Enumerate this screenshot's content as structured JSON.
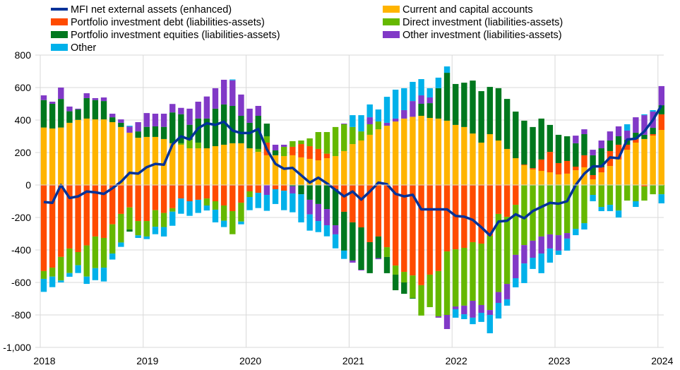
{
  "chart_data": {
    "type": "bar",
    "stacked": true,
    "title": "",
    "xlabel": "",
    "ylabel": "",
    "ylim": [
      -1000,
      800
    ],
    "ytick_step": 200,
    "y_tick_labels": [
      "-1,000",
      "-800",
      "-600",
      "-400",
      "-200",
      "0",
      "200",
      "400",
      "600",
      "800"
    ],
    "x_tick_labels": [
      "2018",
      "2019",
      "2020",
      "2021",
      "2022",
      "2023",
      "2024"
    ],
    "grid": true,
    "legend_placement": "top",
    "x_start": "2018-01",
    "x_end": "2024-01",
    "frequency": "monthly",
    "series": [
      {
        "name": "Current and capital accounts",
        "color": "#FFB400",
        "values": [
          354,
          348,
          354,
          383,
          401,
          409,
          404,
          404,
          387,
          357,
          322,
          291,
          296,
          296,
          283,
          257,
          248,
          226,
          226,
          226,
          239,
          248,
          257,
          257,
          226,
          204,
          183,
          183,
          178,
          183,
          170,
          161,
          152,
          165,
          178,
          209,
          252,
          274,
          309,
          343,
          365,
          391,
          409,
          420,
          426,
          413,
          409,
          396,
          370,
          357,
          317,
          261,
          313,
          274,
          222,
          165,
          122,
          96,
          87,
          78,
          65,
          70,
          91,
          109,
          35,
          78,
          117,
          157,
          217,
          261,
          283,
          304,
          339
        ]
      },
      {
        "name": "Portfolio investment debt (liabilities-assets)",
        "color": "#FF4B00",
        "values": [
          -530,
          -509,
          -443,
          -391,
          -413,
          -372,
          -317,
          -326,
          -242,
          -178,
          -138,
          -222,
          -222,
          -155,
          -172,
          -143,
          -83,
          -100,
          -91,
          -83,
          -100,
          -126,
          -161,
          -109,
          -39,
          -48,
          78,
          -26,
          -35,
          52,
          82,
          78,
          70,
          28,
          -26,
          -165,
          -230,
          -261,
          -352,
          -317,
          -383,
          -496,
          -535,
          -557,
          -617,
          -552,
          -530,
          -409,
          -396,
          -387,
          -352,
          -361,
          -313,
          -178,
          -196,
          -122,
          4,
          8,
          70,
          126,
          70,
          78,
          22,
          74,
          26,
          31,
          92,
          91,
          31,
          22,
          -9,
          9,
          96
        ]
      },
      {
        "name": "Direct investment (liabilities-assets)",
        "color": "#65B800",
        "values": [
          -48,
          -55,
          -145,
          -151,
          -81,
          -192,
          -195,
          -183,
          -180,
          -176,
          -136,
          -88,
          -95,
          -102,
          -87,
          -21,
          9,
          51,
          35,
          -43,
          -52,
          -94,
          -142,
          -116,
          -35,
          18,
          39,
          0,
          57,
          35,
          22,
          48,
          104,
          133,
          179,
          165,
          105,
          56,
          65,
          48,
          -60,
          -56,
          -65,
          -139,
          -187,
          -200,
          -279,
          -391,
          -352,
          -356,
          -361,
          -378,
          -457,
          -481,
          -413,
          -308,
          -370,
          -343,
          -317,
          -304,
          -309,
          -296,
          -270,
          -235,
          -61,
          -135,
          -122,
          -157,
          -96,
          -100,
          -87,
          -57,
          -57
        ]
      },
      {
        "name": "Portfolio investment equities (liabilities-assets)",
        "color": "#00781E",
        "values": [
          169,
          152,
          176,
          71,
          64,
          126,
          119,
          113,
          30,
          26,
          -13,
          39,
          62,
          65,
          75,
          190,
          179,
          94,
          148,
          183,
          231,
          248,
          230,
          169,
          157,
          204,
          78,
          30,
          0,
          -7,
          -57,
          -91,
          -117,
          -148,
          -222,
          -239,
          -235,
          -261,
          -191,
          -134,
          -100,
          -96,
          -70,
          -4,
          74,
          91,
          187,
          295,
          252,
          273,
          326,
          317,
          291,
          322,
          308,
          287,
          270,
          253,
          252,
          166,
          174,
          152,
          144,
          130,
          122,
          117,
          65,
          52,
          30,
          39,
          26,
          39,
          56
        ]
      },
      {
        "name": "Other investment (liabilities-assets)",
        "color": "#8139C7",
        "values": [
          29,
          13,
          70,
          29,
          5,
          30,
          12,
          22,
          22,
          21,
          38,
          57,
          85,
          78,
          81,
          52,
          39,
          99,
          104,
          136,
          126,
          152,
          158,
          131,
          87,
          61,
          -61,
          35,
          13,
          -45,
          0,
          -90,
          -105,
          -100,
          -56,
          4,
          -13,
          -4,
          43,
          -6,
          18,
          18,
          52,
          97,
          52,
          35,
          -8,
          -87,
          -17,
          -53,
          -104,
          -48,
          -30,
          -67,
          -95,
          -144,
          -113,
          -105,
          -105,
          -87,
          -95,
          -34,
          47,
          30,
          34,
          48,
          56,
          61,
          57,
          95,
          121,
          100,
          118
        ]
      },
      {
        "name": "Other",
        "color": "#00B1EA",
        "values": [
          -80,
          -65,
          -12,
          -23,
          -48,
          -45,
          -74,
          -85,
          -37,
          -27,
          5,
          -16,
          -16,
          -46,
          -58,
          -87,
          -94,
          -90,
          -81,
          -31,
          -78,
          -39,
          5,
          -17,
          -81,
          -94,
          -98,
          -91,
          -120,
          -116,
          -173,
          -100,
          -68,
          -68,
          -86,
          -51,
          73,
          100,
          79,
          74,
          160,
          178,
          135,
          118,
          100,
          57,
          65,
          39,
          -52,
          -30,
          -40,
          -56,
          -113,
          -96,
          -39,
          -56,
          -121,
          -69,
          -121,
          -87,
          -26,
          -74,
          -39,
          -39,
          -39,
          -26,
          -39,
          -43,
          39,
          -35,
          5,
          9,
          -56
        ]
      }
    ],
    "line_series": {
      "name": "MFI net external assets (enhanced)",
      "color": "#003299",
      "values": [
        -105,
        -110,
        0,
        -80,
        -70,
        -40,
        -45,
        -55,
        -20,
        20,
        75,
        70,
        110,
        130,
        125,
        250,
        300,
        280,
        350,
        380,
        370,
        390,
        335,
        320,
        320,
        345,
        220,
        130,
        100,
        105,
        60,
        15,
        45,
        10,
        -30,
        -70,
        -40,
        -90,
        -40,
        15,
        5,
        -55,
        -70,
        -60,
        -150,
        -150,
        -150,
        -150,
        -190,
        -195,
        -215,
        -260,
        -310,
        -225,
        -220,
        -180,
        -205,
        -160,
        -135,
        -110,
        -115,
        -100,
        0,
        70,
        115,
        115,
        170,
        165,
        280,
        285,
        330,
        400,
        490
      ]
    }
  },
  "legend": {
    "items": [
      {
        "label": "MFI net external assets (enhanced)",
        "color": "#003299",
        "kind": "line"
      },
      {
        "label": "Current and capital accounts",
        "color": "#FFB400",
        "kind": "box"
      },
      {
        "label": "Portfolio investment debt (liabilities-assets)",
        "color": "#FF4B00",
        "kind": "box"
      },
      {
        "label": "Direct investment (liabilities-assets)",
        "color": "#65B800",
        "kind": "box"
      },
      {
        "label": "Portfolio investment equities (liabilities-assets)",
        "color": "#00781E",
        "kind": "box"
      },
      {
        "label": "Other investment (liabilities-assets)",
        "color": "#8139C7",
        "kind": "box"
      },
      {
        "label": "Other",
        "color": "#00B1EA",
        "kind": "box"
      }
    ]
  }
}
